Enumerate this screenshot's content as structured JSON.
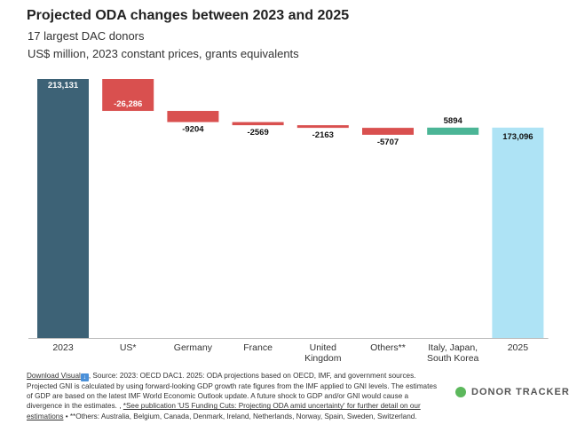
{
  "chart_data": {
    "type": "waterfall",
    "title": "Projected ODA changes between 2023 and 2025",
    "subtitle": "17 largest DAC donors",
    "units": "US$ million, 2023 constant prices, grants equivalents",
    "categories": [
      "2023",
      "US*",
      "Germany",
      "France",
      "United Kingdom",
      "Others**",
      "Italy, Japan, South Korea",
      "2025"
    ],
    "values": [
      213131,
      -26286,
      -9204,
      -2569,
      -2163,
      -5707,
      5894,
      173096
    ],
    "data_labels": [
      "213,131",
      "-26,286",
      "-9204",
      "-2569",
      "-2163",
      "-5707",
      "5894",
      "173,096"
    ],
    "kinds": [
      "total",
      "change",
      "change",
      "change",
      "change",
      "change",
      "change",
      "total"
    ],
    "colors": {
      "total_start": "#3d6276",
      "decrease": "#d9504f",
      "increase": "#4bb596",
      "total_end": "#aee3f5"
    },
    "ylim": [
      0,
      213131
    ],
    "grid": false,
    "xlabel": "",
    "ylabel": ""
  },
  "footnote": {
    "download_label": "Download Visual",
    "source_text": ", Source: 2023: OECD DAC1. 2025: ODA projections based on OECD, IMF, and government sources. Projected GNI is calculated by using forward-looking GDP growth rate figures from the IMF applied to GNI levels. The estimates of GDP are based on the latest IMF World Economic Outlook update. A future shock to GDP and/or GNI would cause a divergence in the estimates. , ",
    "link_text": "*See publication 'US Funding Cuts: Projecting ODA amid uncertainty' for further detail on our estimations",
    "others_text": " • **Others: Australia, Belgium, Canada, Denmark, Ireland, Netherlands, Norway, Spain, Sweden, Switzerland."
  },
  "brand": {
    "name": "DONOR TRACKER"
  }
}
